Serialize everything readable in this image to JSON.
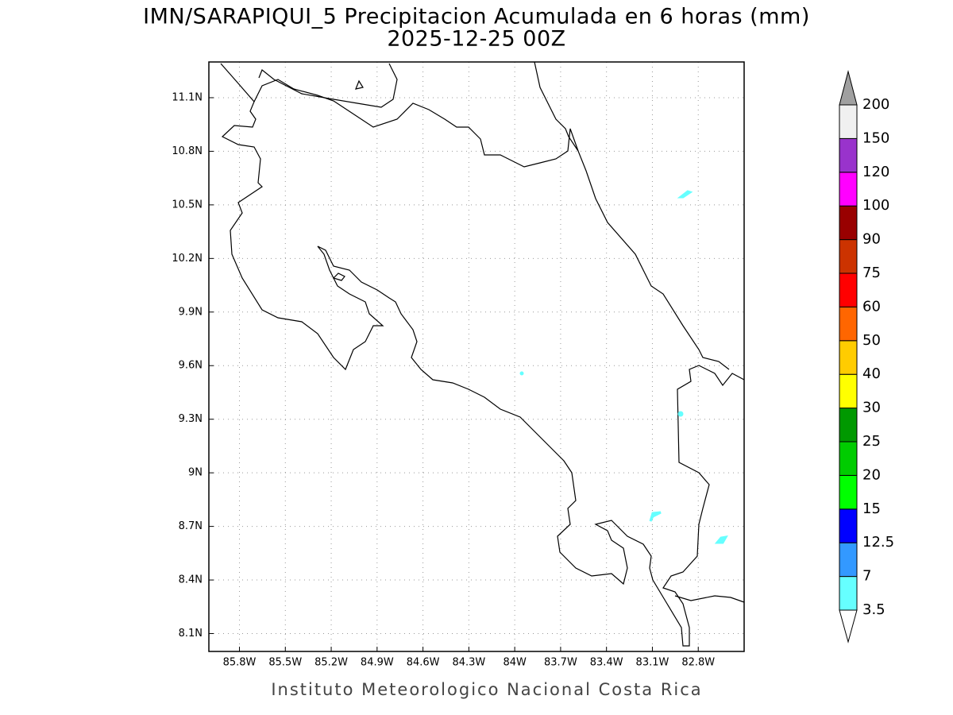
{
  "header": {
    "title": "IMN/SARAPIQUI_5 Precipitacion Acumulada en 6 horas (mm)",
    "subtitle": "2025-12-25 00Z"
  },
  "map": {
    "xlim": [
      -86.0,
      -82.5
    ],
    "ylim": [
      8.0,
      11.3
    ],
    "xticks": [
      {
        "value": -85.8,
        "label": "85.8W"
      },
      {
        "value": -85.5,
        "label": "85.5W"
      },
      {
        "value": -85.2,
        "label": "85.2W"
      },
      {
        "value": -84.9,
        "label": "84.9W"
      },
      {
        "value": -84.6,
        "label": "84.6W"
      },
      {
        "value": -84.3,
        "label": "84.3W"
      },
      {
        "value": -84.0,
        "label": "84W"
      },
      {
        "value": -83.7,
        "label": "83.7W"
      },
      {
        "value": -83.4,
        "label": "83.4W"
      },
      {
        "value": -83.1,
        "label": "83.1W"
      },
      {
        "value": -82.8,
        "label": "82.8W"
      }
    ],
    "yticks": [
      {
        "value": 8.1,
        "label": "8.1N"
      },
      {
        "value": 8.4,
        "label": "8.4N"
      },
      {
        "value": 8.7,
        "label": "8.7N"
      },
      {
        "value": 9.0,
        "label": "9N"
      },
      {
        "value": 9.3,
        "label": "9.3N"
      },
      {
        "value": 9.6,
        "label": "9.6N"
      },
      {
        "value": 9.9,
        "label": "9.9N"
      },
      {
        "value": 10.2,
        "label": "10.2N"
      },
      {
        "value": 10.5,
        "label": "10.5N"
      },
      {
        "value": 10.8,
        "label": "10.8N"
      },
      {
        "value": 11.1,
        "label": "11.1N"
      }
    ],
    "grid": true
  },
  "colorbar": {
    "levels": [
      3.5,
      7,
      12.5,
      15,
      20,
      25,
      30,
      40,
      50,
      60,
      75,
      90,
      100,
      120,
      150,
      200
    ],
    "colors": [
      "#ffffff",
      "#66ffff",
      "#3399ff",
      "#0000ff",
      "#00ff00",
      "#00cc00",
      "#009900",
      "#ffff00",
      "#ffcc00",
      "#ff6600",
      "#ff0000",
      "#cc3300",
      "#990000",
      "#ff00ff",
      "#9933cc",
      "#f0f0f0",
      "#a0a0a0"
    ]
  },
  "footer": "Instituto Meteorologico Nacional Costa Rica"
}
